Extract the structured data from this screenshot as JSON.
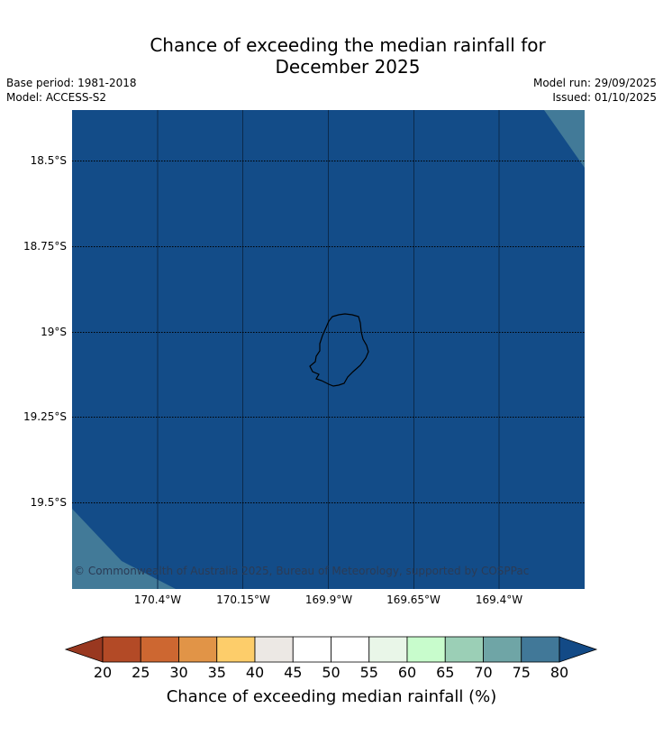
{
  "title_line1": "Chance of exceeding the median rainfall for",
  "title_line2": "December 2025",
  "base_period": "Base period: 1981-2018",
  "model": "Model: ACCESS-S2",
  "model_run": "Model run: 29/09/2025",
  "issued": "Issued: 01/10/2025",
  "copyright": "© Commonwealth of Australia 2025, Bureau of Meteorology, supported by COSPPac",
  "lat_labels": [
    "18.5°S",
    "18.75°S",
    "19°S",
    "19.25°S",
    "19.5°S"
  ],
  "lon_labels": [
    "170.4°W",
    "170.15°W",
    "169.9°W",
    "169.65°W",
    "169.4°W"
  ],
  "colorbar": {
    "title": "Chance of exceeding median rainfall (%)",
    "ticks": [
      "20",
      "25",
      "30",
      "35",
      "40",
      "45",
      "50",
      "55",
      "60",
      "65",
      "70",
      "75",
      "80"
    ],
    "colors": [
      "#993820",
      "#b34a26",
      "#cd6731",
      "#e19447",
      "#fdcd6a",
      "#ece8e4",
      "#ffffff",
      "#ffffff",
      "#e9f6e8",
      "#c8fccc",
      "#9bcfb6",
      "#6fa5a6",
      "#417898",
      "#134a86"
    ]
  },
  "map": {
    "main_color": "#134c88",
    "corner_color": "#427a98",
    "region": "Niue"
  }
}
